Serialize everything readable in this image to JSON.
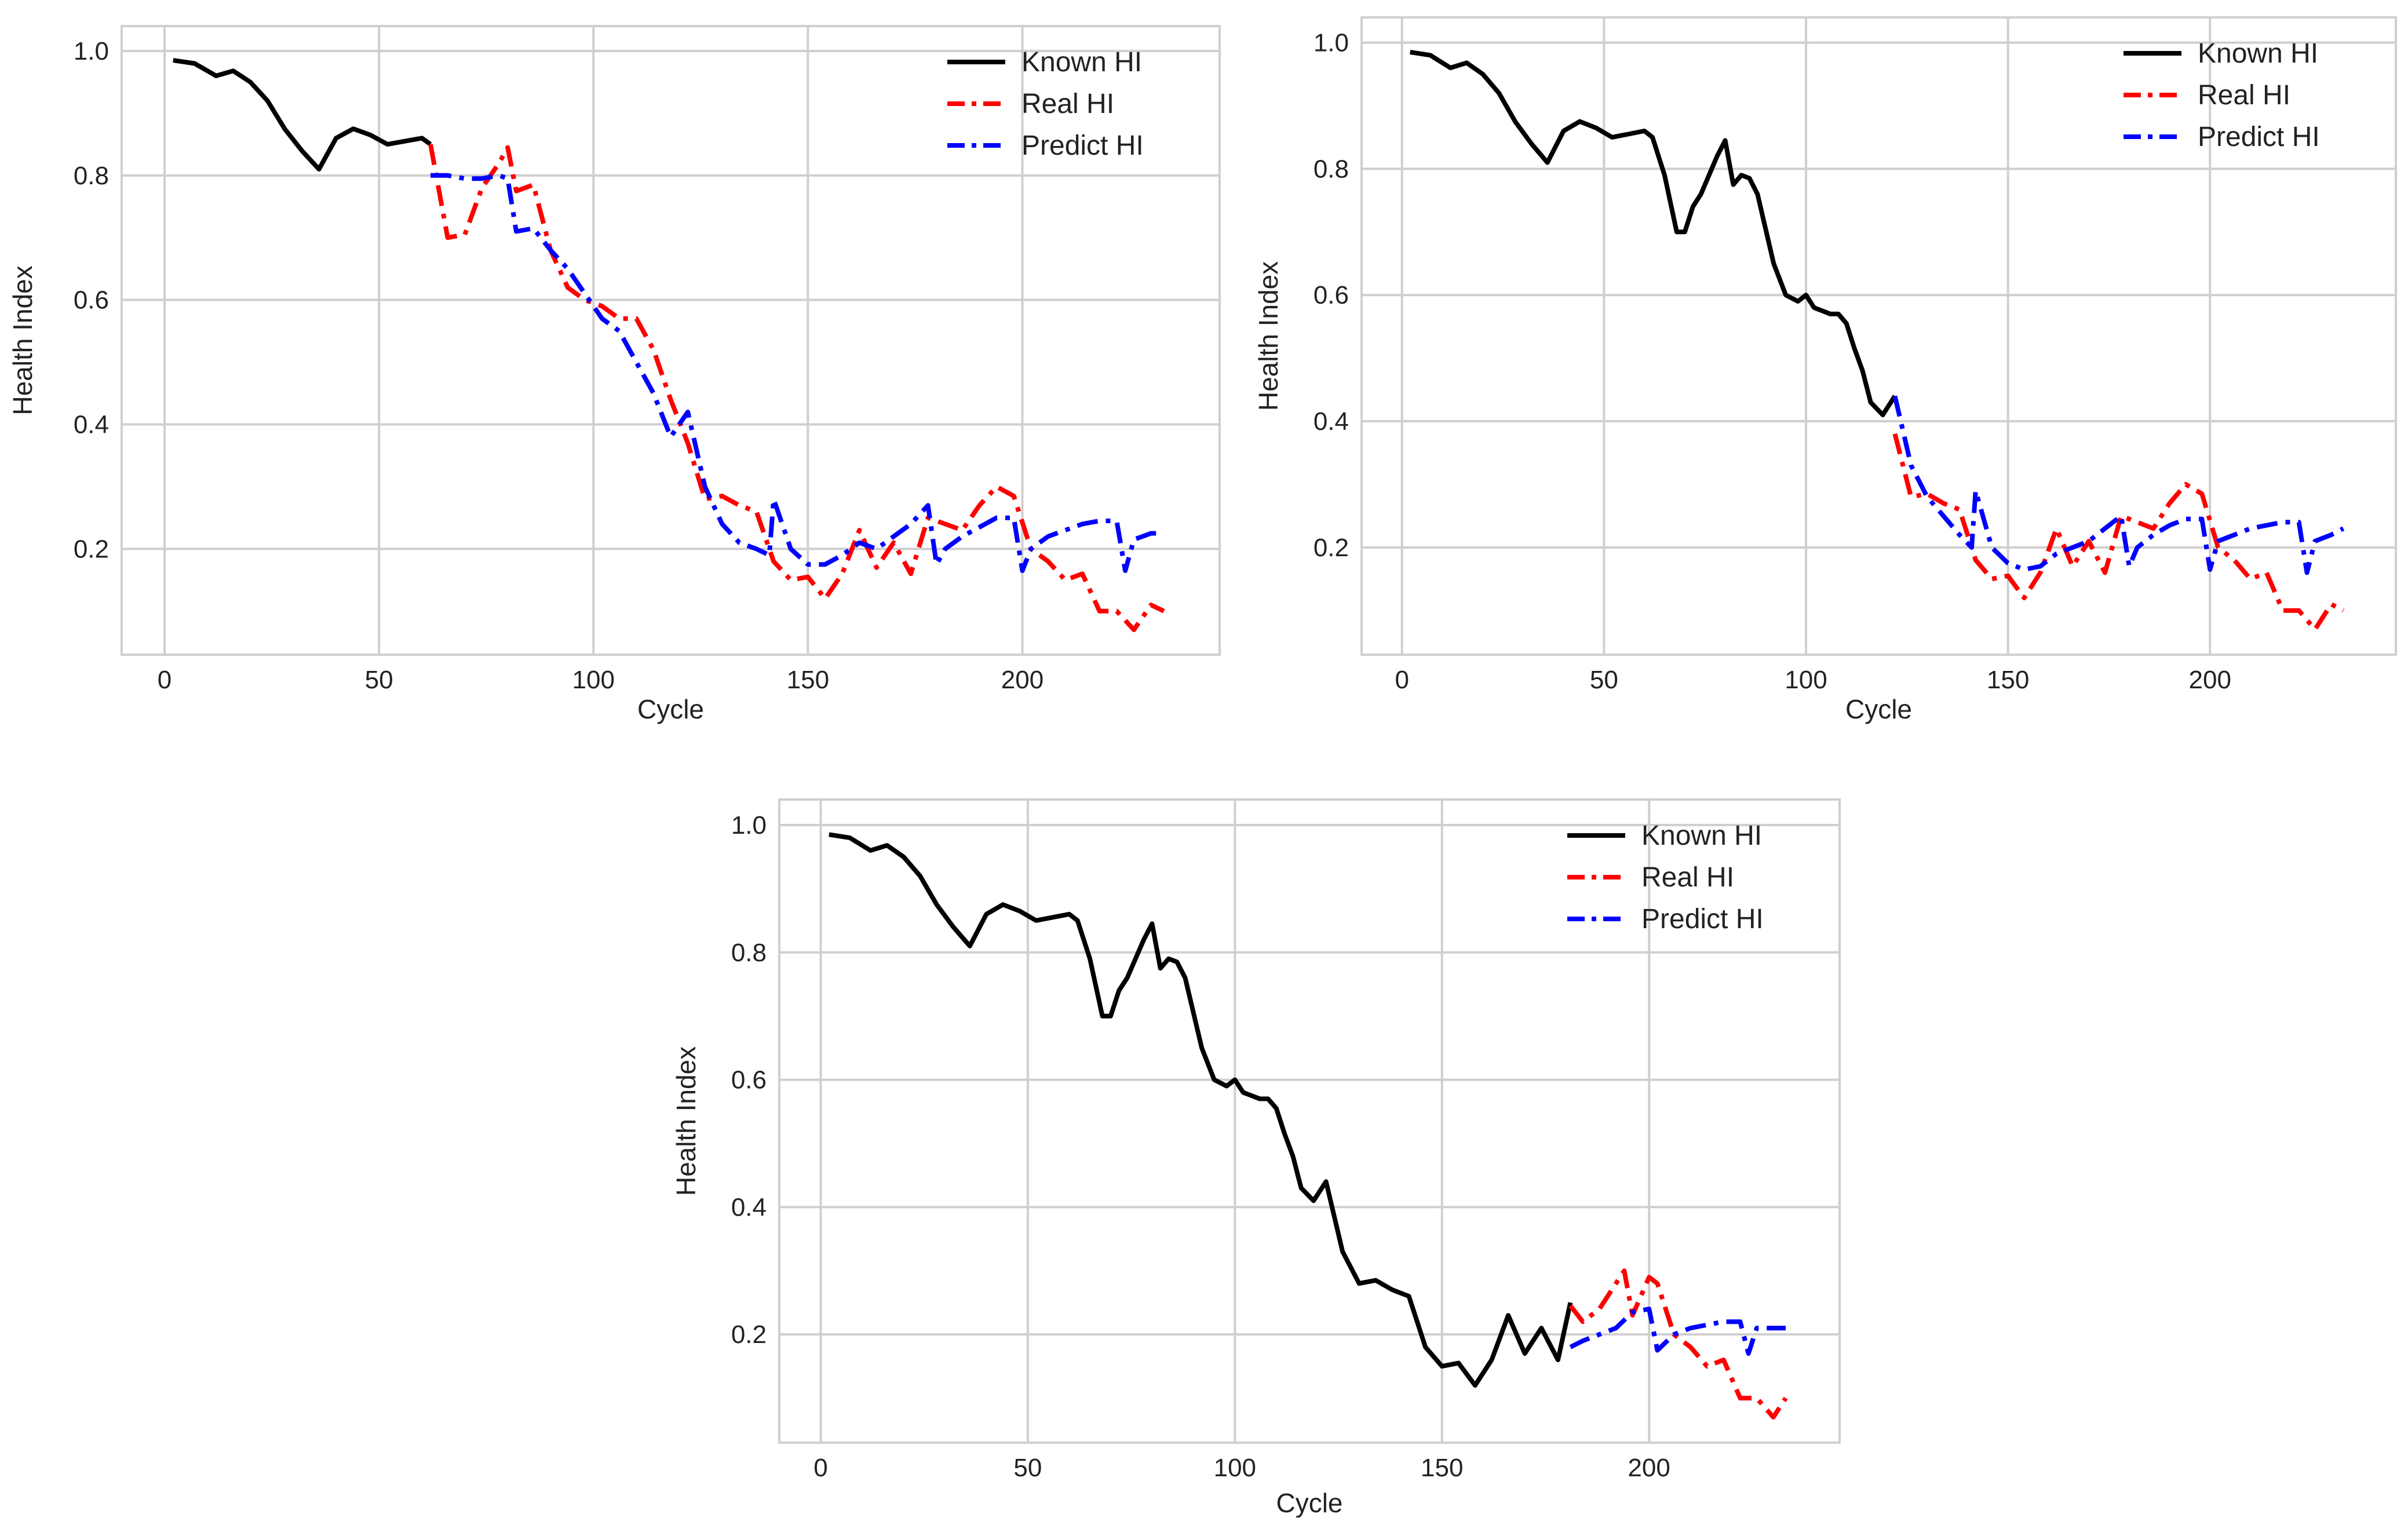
{
  "chart_data": [
    {
      "type": "line",
      "title": "",
      "xlabel": "Cycle",
      "ylabel": "Health Index",
      "xlim": [
        -10,
        246
      ],
      "ylim": [
        0.03,
        1.04
      ],
      "xticks": [
        0,
        50,
        100,
        150,
        200
      ],
      "yticks": [
        0.2,
        0.4,
        0.6,
        0.8,
        1.0
      ],
      "xtick_labels": [
        "0",
        "50",
        "100",
        "150",
        "200"
      ],
      "ytick_labels": [
        "0.2",
        "0.4",
        "0.6",
        "0.8",
        "1.0"
      ],
      "grid": true,
      "legend_position": "top-right",
      "series": [
        {
          "name": "Known HI",
          "color": "#000000",
          "style": "solid",
          "x": [
            2,
            7,
            12,
            16,
            20,
            24,
            28,
            32,
            36,
            40,
            44,
            48,
            52,
            56,
            60,
            62
          ],
          "y": [
            0.985,
            0.98,
            0.96,
            0.968,
            0.95,
            0.92,
            0.875,
            0.84,
            0.81,
            0.86,
            0.875,
            0.865,
            0.85,
            0.855,
            0.86,
            0.85
          ]
        },
        {
          "name": "Real HI",
          "color": "#ff0000",
          "style": "dashdot",
          "x": [
            62,
            66,
            70,
            74,
            78,
            80,
            82,
            86,
            90,
            94,
            98,
            102,
            106,
            110,
            114,
            118,
            122,
            126,
            130,
            134,
            138,
            142,
            146,
            150,
            154,
            158,
            162,
            166,
            170,
            174,
            178,
            182,
            186,
            190,
            194,
            198,
            202,
            206,
            210,
            214,
            218,
            222,
            226,
            230,
            233
          ],
          "y": [
            0.85,
            0.7,
            0.705,
            0.78,
            0.82,
            0.845,
            0.775,
            0.785,
            0.68,
            0.62,
            0.6,
            0.59,
            0.57,
            0.57,
            0.52,
            0.44,
            0.37,
            0.28,
            0.285,
            0.27,
            0.26,
            0.18,
            0.15,
            0.155,
            0.12,
            0.16,
            0.23,
            0.17,
            0.21,
            0.16,
            0.25,
            0.24,
            0.23,
            0.27,
            0.3,
            0.285,
            0.2,
            0.18,
            0.15,
            0.16,
            0.1,
            0.1,
            0.07,
            0.11,
            0.1
          ]
        },
        {
          "name": "Predict HI",
          "color": "#0000ff",
          "style": "dashdot",
          "x": [
            62,
            66,
            70,
            74,
            78,
            80,
            82,
            86,
            90,
            94,
            98,
            102,
            106,
            110,
            114,
            118,
            122,
            126,
            130,
            134,
            138,
            141,
            142,
            146,
            150,
            154,
            158,
            162,
            166,
            170,
            174,
            178,
            180,
            182,
            186,
            190,
            194,
            198,
            200,
            202,
            206,
            210,
            214,
            218,
            222,
            224,
            226,
            230,
            233
          ],
          "y": [
            0.8,
            0.8,
            0.795,
            0.795,
            0.8,
            0.795,
            0.71,
            0.715,
            0.68,
            0.65,
            0.61,
            0.57,
            0.55,
            0.5,
            0.45,
            0.38,
            0.42,
            0.3,
            0.24,
            0.21,
            0.2,
            0.19,
            0.28,
            0.2,
            0.175,
            0.175,
            0.19,
            0.21,
            0.2,
            0.22,
            0.24,
            0.27,
            0.175,
            0.2,
            0.22,
            0.235,
            0.25,
            0.25,
            0.165,
            0.2,
            0.22,
            0.23,
            0.24,
            0.245,
            0.245,
            0.165,
            0.215,
            0.225,
            0.225
          ]
        }
      ]
    },
    {
      "type": "line",
      "title": "",
      "xlabel": "Cycle",
      "ylabel": "Health Index",
      "xlim": [
        -10,
        246
      ],
      "ylim": [
        0.03,
        1.04
      ],
      "xticks": [
        0,
        50,
        100,
        150,
        200
      ],
      "yticks": [
        0.2,
        0.4,
        0.6,
        0.8,
        1.0
      ],
      "xtick_labels": [
        "0",
        "50",
        "100",
        "150",
        "200"
      ],
      "ytick_labels": [
        "0.2",
        "0.4",
        "0.6",
        "0.8",
        "1.0"
      ],
      "grid": true,
      "legend_position": "top-right",
      "series": [
        {
          "name": "Known HI",
          "color": "#000000",
          "style": "solid",
          "x": [
            2,
            7,
            12,
            16,
            20,
            24,
            28,
            32,
            36,
            40,
            44,
            48,
            52,
            56,
            60,
            62,
            65,
            68,
            70,
            72,
            74,
            78,
            80,
            82,
            84,
            86,
            88,
            92,
            95,
            98,
            100,
            102,
            104,
            106,
            108,
            110,
            112,
            114,
            116,
            119,
            122
          ],
          "y": [
            0.985,
            0.98,
            0.96,
            0.968,
            0.95,
            0.92,
            0.875,
            0.84,
            0.81,
            0.86,
            0.875,
            0.865,
            0.85,
            0.855,
            0.86,
            0.85,
            0.79,
            0.7,
            0.7,
            0.74,
            0.76,
            0.82,
            0.845,
            0.775,
            0.79,
            0.785,
            0.76,
            0.65,
            0.6,
            0.59,
            0.6,
            0.58,
            0.575,
            0.57,
            0.57,
            0.555,
            0.515,
            0.48,
            0.43,
            0.41,
            0.44
          ]
        },
        {
          "name": "Real HI",
          "color": "#ff0000",
          "style": "dashdot",
          "x": [
            122,
            126,
            130,
            134,
            138,
            142,
            146,
            150,
            154,
            158,
            162,
            166,
            170,
            174,
            178,
            182,
            186,
            190,
            194,
            198,
            202,
            206,
            210,
            214,
            218,
            222,
            226,
            230,
            233
          ],
          "y": [
            0.38,
            0.28,
            0.285,
            0.27,
            0.26,
            0.18,
            0.15,
            0.155,
            0.12,
            0.16,
            0.23,
            0.17,
            0.21,
            0.16,
            0.25,
            0.24,
            0.23,
            0.27,
            0.3,
            0.285,
            0.2,
            0.18,
            0.15,
            0.16,
            0.1,
            0.1,
            0.07,
            0.11,
            0.1
          ]
        },
        {
          "name": "Predict HI",
          "color": "#0000ff",
          "style": "dashdot",
          "x": [
            122,
            126,
            130,
            134,
            138,
            141,
            142,
            146,
            150,
            154,
            158,
            162,
            166,
            170,
            174,
            178,
            180,
            182,
            186,
            190,
            194,
            198,
            200,
            202,
            206,
            210,
            214,
            218,
            222,
            224,
            226,
            230,
            233
          ],
          "y": [
            0.44,
            0.33,
            0.28,
            0.25,
            0.22,
            0.2,
            0.29,
            0.2,
            0.175,
            0.165,
            0.17,
            0.19,
            0.2,
            0.21,
            0.23,
            0.25,
            0.17,
            0.2,
            0.22,
            0.235,
            0.245,
            0.245,
            0.165,
            0.21,
            0.22,
            0.23,
            0.235,
            0.24,
            0.24,
            0.16,
            0.21,
            0.22,
            0.23
          ]
        }
      ]
    },
    {
      "type": "line",
      "title": "",
      "xlabel": "Cycle",
      "ylabel": "Health Index",
      "xlim": [
        -10,
        246
      ],
      "ylim": [
        0.03,
        1.04
      ],
      "xticks": [
        0,
        50,
        100,
        150,
        200
      ],
      "yticks": [
        0.2,
        0.4,
        0.6,
        0.8,
        1.0
      ],
      "xtick_labels": [
        "0",
        "50",
        "100",
        "150",
        "200"
      ],
      "ytick_labels": [
        "0.2",
        "0.4",
        "0.6",
        "0.8",
        "1.0"
      ],
      "grid": true,
      "legend_position": "top-right",
      "series": [
        {
          "name": "Known HI",
          "color": "#000000",
          "style": "solid",
          "x": [
            2,
            7,
            12,
            16,
            20,
            24,
            28,
            32,
            36,
            40,
            44,
            48,
            52,
            56,
            60,
            62,
            65,
            68,
            70,
            72,
            74,
            78,
            80,
            82,
            84,
            86,
            88,
            92,
            95,
            98,
            100,
            102,
            104,
            106,
            108,
            110,
            112,
            114,
            116,
            119,
            122,
            126,
            130,
            134,
            138,
            142,
            146,
            150,
            154,
            158,
            162,
            166,
            170,
            174,
            178,
            181
          ],
          "y": [
            0.985,
            0.98,
            0.96,
            0.968,
            0.95,
            0.92,
            0.875,
            0.84,
            0.81,
            0.86,
            0.875,
            0.865,
            0.85,
            0.855,
            0.86,
            0.85,
            0.79,
            0.7,
            0.7,
            0.74,
            0.76,
            0.82,
            0.845,
            0.775,
            0.79,
            0.785,
            0.76,
            0.65,
            0.6,
            0.59,
            0.6,
            0.58,
            0.575,
            0.57,
            0.57,
            0.555,
            0.515,
            0.48,
            0.43,
            0.41,
            0.44,
            0.33,
            0.28,
            0.285,
            0.27,
            0.26,
            0.18,
            0.15,
            0.155,
            0.12,
            0.16,
            0.23,
            0.17,
            0.21,
            0.16,
            0.25
          ]
        },
        {
          "name": "Real HI",
          "color": "#ff0000",
          "style": "dashdot",
          "x": [
            181,
            184,
            188,
            192,
            194,
            196,
            200,
            202,
            206,
            210,
            214,
            218,
            222,
            226,
            230,
            233
          ],
          "y": [
            0.245,
            0.22,
            0.24,
            0.28,
            0.3,
            0.23,
            0.29,
            0.28,
            0.2,
            0.18,
            0.15,
            0.16,
            0.1,
            0.1,
            0.07,
            0.1
          ]
        },
        {
          "name": "Predict HI",
          "color": "#0000ff",
          "style": "dashdot",
          "x": [
            181,
            184,
            188,
            192,
            196,
            200,
            202,
            206,
            210,
            214,
            218,
            222,
            224,
            226,
            230,
            233
          ],
          "y": [
            0.18,
            0.19,
            0.2,
            0.21,
            0.235,
            0.24,
            0.175,
            0.2,
            0.21,
            0.215,
            0.22,
            0.22,
            0.17,
            0.21,
            0.21,
            0.21
          ]
        }
      ]
    }
  ]
}
